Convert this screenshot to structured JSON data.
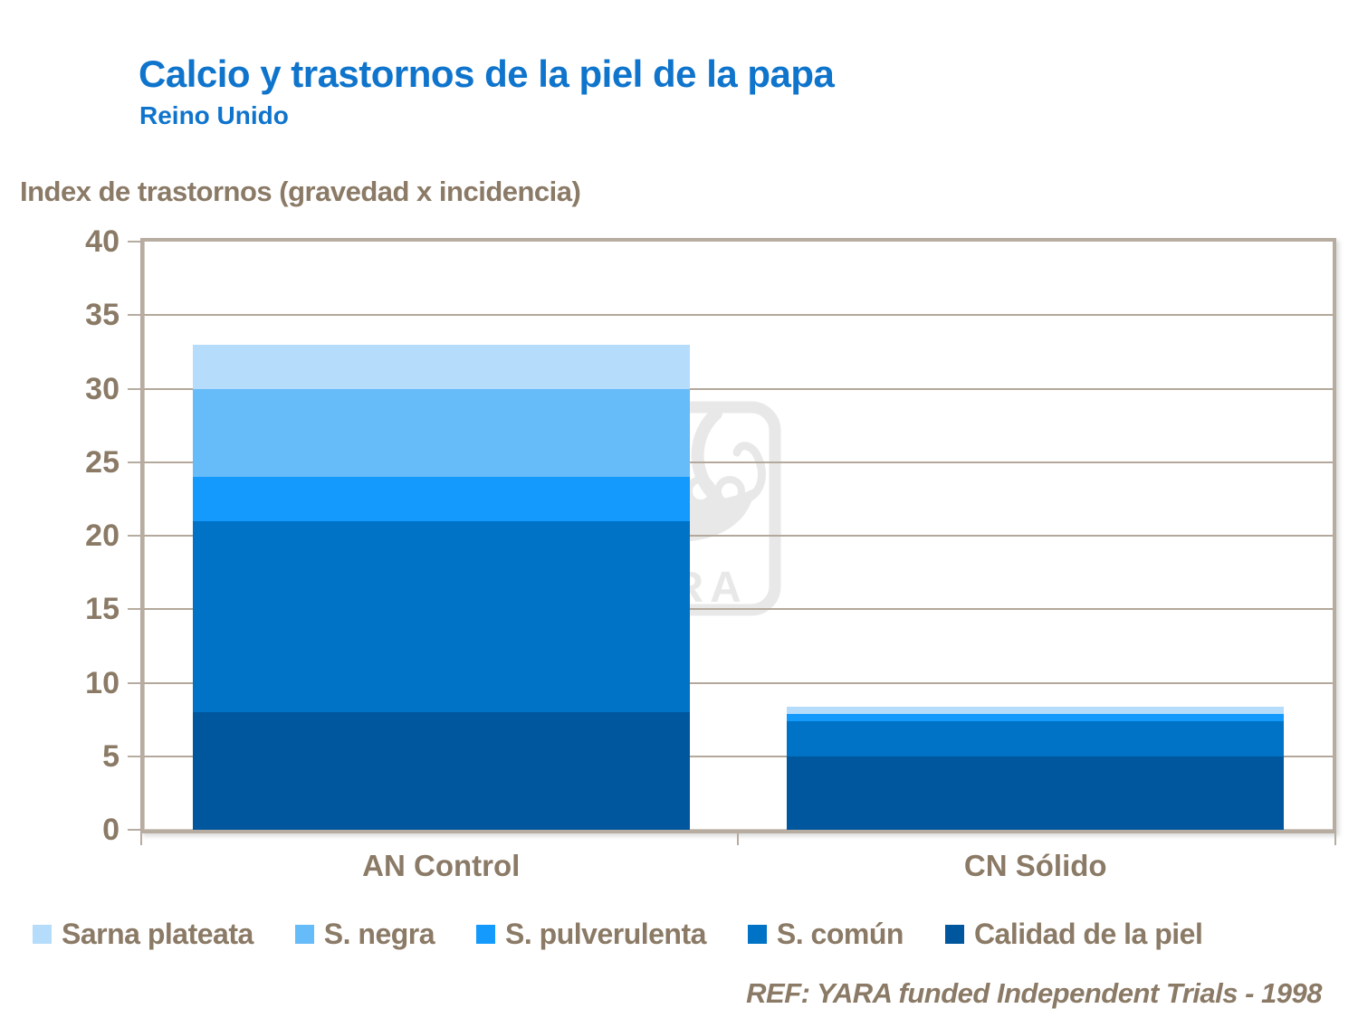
{
  "header": {
    "title": "Calcio y trastornos de la piel de la papa",
    "subtitle": "Reino Unido"
  },
  "footer": {
    "text": "REF: YARA funded Independent Trials - 1998"
  },
  "watermark": {
    "name": "yara-logo",
    "text": "YARA"
  },
  "colors": {
    "title_blue": "#0f74cc",
    "text_brown": "#8a7a66",
    "plot_border_taupe": "#b7aca0",
    "gridline_taupe": "#b3a89b",
    "background": "#ffffff"
  },
  "chart_data": {
    "type": "bar",
    "stacked": true,
    "title": "Calcio y trastornos de la piel de la papa",
    "subtitle": "Reino Unido",
    "xlabel": "",
    "ylabel": "Index de trastornos (gravedad x incidencia)",
    "categories": [
      "AN Control",
      "CN Sólido"
    ],
    "series": [
      {
        "name": "Sarna plateata",
        "color": "#b5ddfb",
        "values": [
          3,
          0.5
        ]
      },
      {
        "name": "S. negra",
        "color": "#66bbf9",
        "values": [
          6,
          0
        ]
      },
      {
        "name": "S. pulverulenta",
        "color": "#149afd",
        "values": [
          3,
          0.5
        ]
      },
      {
        "name": "S. común",
        "color": "#0073c6",
        "values": [
          13,
          2.4
        ]
      },
      {
        "name": "Calidad de la piel",
        "color": "#00579d",
        "values": [
          8,
          5
        ]
      }
    ],
    "ylim": [
      0,
      40
    ],
    "ytick_step": 5,
    "grid": true,
    "legend_position": "bottom"
  }
}
